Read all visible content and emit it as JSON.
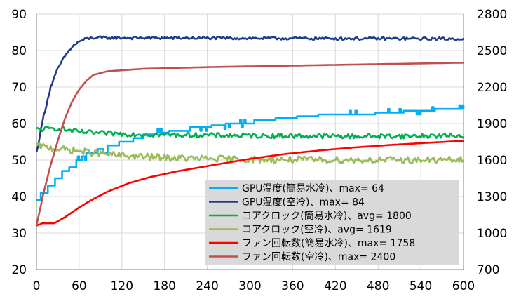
{
  "chart_data": {
    "type": "line",
    "x_ticks": [
      0,
      60,
      120,
      180,
      240,
      300,
      360,
      420,
      480,
      540,
      600
    ],
    "y_left": {
      "min": 20,
      "max": 90,
      "ticks": [
        20,
        30,
        40,
        50,
        60,
        70,
        80,
        90
      ]
    },
    "y_right": {
      "min": 700,
      "max": 2800,
      "ticks": [
        700,
        1000,
        1300,
        1600,
        1900,
        2200,
        2500,
        2800
      ]
    },
    "grid": true,
    "legend_position": "bottom-right",
    "series": [
      {
        "name": "GPU温度(簡易水冷)、max= 64",
        "axis": "left",
        "color": "#00b0f0",
        "style": "step",
        "points": [
          [
            0,
            39
          ],
          [
            6,
            41
          ],
          [
            15,
            43
          ],
          [
            25,
            45
          ],
          [
            35,
            47
          ],
          [
            45,
            48
          ],
          [
            55,
            50
          ],
          [
            70,
            52
          ],
          [
            85,
            53
          ],
          [
            100,
            54
          ],
          [
            115,
            55
          ],
          [
            135,
            56
          ],
          [
            150,
            57
          ],
          [
            170,
            57.5
          ],
          [
            185,
            58
          ],
          [
            215,
            59
          ],
          [
            245,
            59.5
          ],
          [
            265,
            60
          ],
          [
            305,
            61
          ],
          [
            335,
            61.5
          ],
          [
            365,
            62
          ],
          [
            395,
            62.5
          ],
          [
            430,
            62.5
          ],
          [
            475,
            63
          ],
          [
            515,
            63.5
          ],
          [
            560,
            64
          ],
          [
            600,
            64
          ]
        ],
        "noise": 0.5
      },
      {
        "name": "GPU温度(空冷)、max= 84",
        "axis": "left",
        "color": "#1f3c88",
        "style": "line",
        "points": [
          [
            0,
            52
          ],
          [
            10,
            62
          ],
          [
            20,
            70
          ],
          [
            30,
            75
          ],
          [
            40,
            78.5
          ],
          [
            50,
            81
          ],
          [
            60,
            82.5
          ],
          [
            70,
            83.2
          ],
          [
            80,
            83.5
          ],
          [
            600,
            83.2
          ]
        ],
        "noise": 0.4
      },
      {
        "name": "コアクロック(簡易水冷)、avg= 1800",
        "axis": "right",
        "color": "#00b050",
        "style": "line",
        "points": [
          [
            0,
            1850
          ],
          [
            30,
            1860
          ],
          [
            60,
            1830
          ],
          [
            90,
            1820
          ],
          [
            150,
            1810
          ],
          [
            300,
            1800
          ],
          [
            450,
            1795
          ],
          [
            600,
            1800
          ]
        ],
        "noise": 20
      },
      {
        "name": "コアクロック(空冷)、avg= 1619",
        "axis": "right",
        "color": "#9bbb59",
        "style": "line",
        "points": [
          [
            0,
            1720
          ],
          [
            20,
            1700
          ],
          [
            50,
            1680
          ],
          [
            80,
            1660
          ],
          [
            110,
            1640
          ],
          [
            140,
            1630
          ],
          [
            200,
            1615
          ],
          [
            300,
            1605
          ],
          [
            450,
            1600
          ],
          [
            600,
            1600
          ]
        ],
        "noise": 28
      },
      {
        "name": "ファン回転数(簡易水冷)、max= 1758",
        "axis": "right",
        "color": "#ff0000",
        "style": "line",
        "points": [
          [
            0,
            1060
          ],
          [
            8,
            1080
          ],
          [
            25,
            1080
          ],
          [
            40,
            1130
          ],
          [
            60,
            1210
          ],
          [
            80,
            1280
          ],
          [
            100,
            1340
          ],
          [
            130,
            1410
          ],
          [
            160,
            1460
          ],
          [
            200,
            1510
          ],
          [
            250,
            1560
          ],
          [
            300,
            1610
          ],
          [
            350,
            1650
          ],
          [
            400,
            1680
          ],
          [
            450,
            1705
          ],
          [
            500,
            1725
          ],
          [
            550,
            1742
          ],
          [
            600,
            1758
          ]
        ],
        "noise": 0
      },
      {
        "name": "ファン回転数(空冷)、max= 2400",
        "axis": "right",
        "color": "#c0504d",
        "style": "line",
        "points": [
          [
            0,
            1060
          ],
          [
            10,
            1330
          ],
          [
            20,
            1560
          ],
          [
            30,
            1760
          ],
          [
            40,
            1940
          ],
          [
            50,
            2080
          ],
          [
            60,
            2180
          ],
          [
            70,
            2250
          ],
          [
            80,
            2300
          ],
          [
            100,
            2330
          ],
          [
            150,
            2350
          ],
          [
            250,
            2365
          ],
          [
            400,
            2380
          ],
          [
            500,
            2390
          ],
          [
            600,
            2400
          ]
        ],
        "noise": 0
      }
    ]
  }
}
